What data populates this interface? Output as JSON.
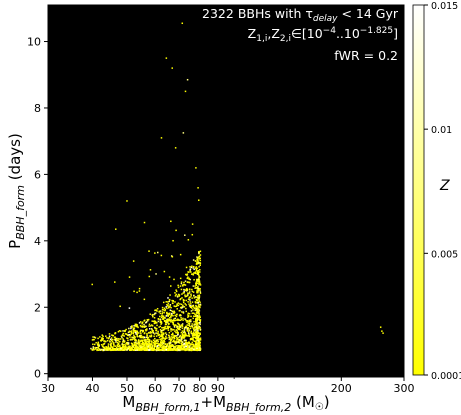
{
  "chart_data": {
    "type": "scatter",
    "annotation_lines": [
      "2322 BBHs with τ_delay < 14 Gyr",
      "Z_1,i,Z_2,i ∈ [10^-4..10^-1.825]",
      "fWR = 0.2"
    ],
    "xlabel": "M_BBH_form,1+M_BBH_form,2 (M_☉)",
    "ylabel": "P_BBH_form (days)",
    "colorbar_label": "Z",
    "x_scale": "log",
    "xlim": [
      30,
      300
    ],
    "ylim": [
      -0.1,
      11.1
    ],
    "x_ticks": [
      30,
      40,
      50,
      60,
      70,
      80,
      90,
      200,
      300
    ],
    "x_tick_labels": [
      "30",
      "40",
      "50",
      "60",
      "70",
      "80",
      "90",
      "200",
      "300"
    ],
    "y_ticks": [
      0,
      2,
      4,
      6,
      8,
      10
    ],
    "y_tick_labels": [
      "0",
      "2",
      "4",
      "6",
      "8",
      "10"
    ],
    "colorbar_ticks": [
      0.0001,
      0.005,
      0.01,
      0.015
    ],
    "colorbar_tick_labels": [
      "0.0001",
      "0.005",
      "0.01",
      "0.015"
    ],
    "colorbar_range": [
      0.0001,
      0.015
    ],
    "background": "#000000",
    "colormap": [
      "#ffff00",
      "#ffff80",
      "#ffffff"
    ],
    "n_points": 2322,
    "highlighted_points": [
      {
        "x": 71.5,
        "y": 10.55
      },
      {
        "x": 64.5,
        "y": 9.5
      },
      {
        "x": 67,
        "y": 9.2
      },
      {
        "x": 74,
        "y": 8.85
      },
      {
        "x": 73,
        "y": 8.5
      },
      {
        "x": 62.5,
        "y": 7.1
      },
      {
        "x": 68.5,
        "y": 6.8
      },
      {
        "x": 72,
        "y": 7.25
      },
      {
        "x": 50,
        "y": 5.2
      },
      {
        "x": 46.5,
        "y": 4.35
      },
      {
        "x": 56,
        "y": 4.55
      },
      {
        "x": 258,
        "y": 1.4
      },
      {
        "x": 260,
        "y": 1.28
      },
      {
        "x": 262,
        "y": 1.22
      }
    ]
  }
}
